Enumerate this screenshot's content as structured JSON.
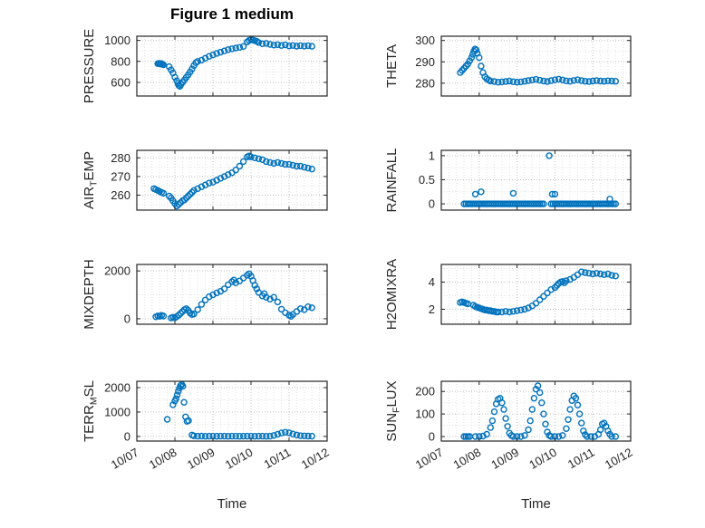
{
  "figure": {
    "title": "Figure 1 medium"
  },
  "axes": {
    "xlabel": "Time",
    "xlim": [
      0,
      5
    ],
    "x_ticks": [
      0,
      1,
      2,
      3,
      4,
      5
    ],
    "x_tick_labels": [
      "10/07",
      "10/08",
      "10/09",
      "10/10",
      "10/11",
      "10/12"
    ]
  },
  "style": {
    "marker_color": "#0072BD",
    "axis_color": "#262626",
    "tick_label_color": "#262626",
    "grid_major": "#c2c2c2",
    "grid_minor": "#e2e2e2"
  },
  "chart_data": [
    {
      "type": "scatter",
      "name": "pressure",
      "marker": "o",
      "ylabel_parts": [
        {
          "t": "PRESSURE"
        }
      ],
      "ylim": [
        470,
        1040
      ],
      "y_ticks": [
        600,
        800,
        1000
      ],
      "y_tick_labels": [
        "600",
        "800",
        "1000"
      ],
      "show_x_tick_labels": false,
      "x": [
        0.55,
        0.58,
        0.61,
        0.64,
        0.67,
        0.7,
        0.85,
        0.9,
        0.95,
        1.0,
        1.05,
        1.08,
        1.1,
        1.13,
        1.16,
        1.2,
        1.25,
        1.3,
        1.35,
        1.4,
        1.45,
        1.5,
        1.55,
        1.6,
        1.7,
        1.8,
        1.9,
        2.0,
        2.1,
        2.2,
        2.3,
        2.4,
        2.5,
        2.6,
        2.7,
        2.8,
        2.9,
        2.95,
        3.0,
        3.05,
        3.1,
        3.15,
        3.2,
        3.3,
        3.4,
        3.5,
        3.6,
        3.7,
        3.8,
        3.9,
        4.0,
        4.1,
        4.2,
        4.3,
        4.4,
        4.5,
        4.6
      ],
      "y": [
        778,
        782,
        776,
        780,
        772,
        768,
        750,
        720,
        690,
        650,
        615,
        590,
        572,
        562,
        580,
        600,
        622,
        648,
        672,
        700,
        728,
        760,
        788,
        800,
        812,
        830,
        848,
        862,
        876,
        888,
        900,
        912,
        920,
        928,
        934,
        942,
        986,
        1000,
        1008,
        1004,
        998,
        992,
        980,
        968,
        972,
        962,
        955,
        960,
        952,
        958,
        948,
        952,
        945,
        950,
        946,
        950,
        944
      ]
    },
    {
      "type": "scatter",
      "name": "theta",
      "marker": "o",
      "ylabel_parts": [
        {
          "t": "THETA"
        }
      ],
      "ylim": [
        274,
        302
      ],
      "y_ticks": [
        280,
        290,
        300
      ],
      "y_tick_labels": [
        "280",
        "290",
        "300"
      ],
      "show_x_tick_labels": false,
      "x": [
        0.5,
        0.55,
        0.6,
        0.65,
        0.7,
        0.75,
        0.8,
        0.83,
        0.86,
        0.89,
        0.92,
        0.95,
        1.0,
        1.05,
        1.1,
        1.15,
        1.2,
        1.25,
        1.3,
        1.4,
        1.5,
        1.6,
        1.7,
        1.8,
        1.9,
        2.0,
        2.1,
        2.2,
        2.3,
        2.4,
        2.5,
        2.6,
        2.7,
        2.8,
        2.9,
        3.0,
        3.1,
        3.2,
        3.3,
        3.4,
        3.5,
        3.6,
        3.7,
        3.8,
        3.9,
        4.0,
        4.1,
        4.2,
        4.3,
        4.4,
        4.5,
        4.6
      ],
      "y": [
        285,
        286,
        287,
        288,
        289,
        290.5,
        292,
        293.5,
        295,
        296,
        295.5,
        294,
        292,
        288,
        285,
        283,
        282,
        281.5,
        281,
        280.8,
        280.5,
        280.6,
        280.8,
        281,
        280.7,
        280.5,
        280.6,
        280.9,
        281.2,
        281.5,
        281.8,
        281.4,
        281,
        280.8,
        281.2,
        281.6,
        281.9,
        281.5,
        281.1,
        280.9,
        281.3,
        281.6,
        281.2,
        280.9,
        280.8,
        281,
        281.2,
        281,
        280.9,
        281.1,
        281,
        280.9
      ]
    },
    {
      "type": "scatter",
      "name": "air-temp",
      "marker": "o",
      "ylabel_parts": [
        {
          "t": "AIR"
        },
        {
          "t": "T",
          "sub": true
        },
        {
          "t": "EMP"
        }
      ],
      "ylim": [
        252,
        284
      ],
      "y_ticks": [
        260,
        270,
        280
      ],
      "y_tick_labels": [
        "260",
        "270",
        "280"
      ],
      "show_x_tick_labels": false,
      "x": [
        0.45,
        0.5,
        0.55,
        0.6,
        0.65,
        0.7,
        0.85,
        0.9,
        0.95,
        1.0,
        1.05,
        1.1,
        1.15,
        1.2,
        1.25,
        1.3,
        1.35,
        1.4,
        1.45,
        1.5,
        1.6,
        1.7,
        1.8,
        1.9,
        2.0,
        2.1,
        2.2,
        2.3,
        2.4,
        2.5,
        2.6,
        2.7,
        2.8,
        2.9,
        2.95,
        3.0,
        3.1,
        3.2,
        3.3,
        3.4,
        3.5,
        3.6,
        3.7,
        3.8,
        3.9,
        4.0,
        4.1,
        4.2,
        4.3,
        4.4,
        4.5,
        4.6
      ],
      "y": [
        263.5,
        263,
        262.5,
        262,
        261.5,
        261,
        259.5,
        258.5,
        257,
        255.5,
        254.2,
        255,
        256,
        257,
        257.5,
        258.5,
        259.5,
        260.5,
        261.5,
        262.5,
        263.5,
        264.5,
        265.5,
        266.5,
        267,
        268,
        269,
        270,
        271,
        272,
        273.5,
        275.5,
        278,
        280.5,
        281,
        280.5,
        280,
        279.5,
        279,
        278,
        277.5,
        277,
        277.5,
        277,
        276.5,
        276.5,
        276,
        275.5,
        275.5,
        275,
        274.5,
        274
      ]
    },
    {
      "type": "scatter",
      "name": "rainfall",
      "marker": "o",
      "ylabel_parts": [
        {
          "t": "RAINFALL"
        }
      ],
      "ylim": [
        -0.13,
        1.11
      ],
      "y_ticks": [
        0,
        0.5,
        1
      ],
      "y_tick_labels": [
        "0",
        "0.5",
        "1"
      ],
      "show_x_tick_labels": false,
      "x": [
        0.6,
        0.65,
        0.7,
        0.75,
        0.8,
        0.85,
        0.9,
        0.95,
        1,
        1.05,
        1.1,
        1.15,
        1.2,
        1.25,
        1.3,
        1.35,
        1.4,
        1.45,
        1.5,
        1.55,
        1.6,
        1.65,
        1.7,
        1.75,
        1.8,
        1.85,
        1.9,
        1.95,
        2,
        2.05,
        2.1,
        2.15,
        2.2,
        2.25,
        2.3,
        2.35,
        2.4,
        2.45,
        2.5,
        2.55,
        2.6,
        2.65,
        2.7,
        2.9,
        2.95,
        3,
        3.05,
        3.1,
        3.15,
        3.2,
        3.25,
        3.3,
        3.35,
        3.4,
        3.45,
        3.5,
        3.55,
        3.6,
        3.65,
        3.7,
        3.75,
        3.8,
        3.85,
        3.9,
        3.95,
        4,
        4.05,
        4.1,
        4.15,
        4.2,
        4.25,
        4.3,
        4.35,
        4.4,
        4.45,
        4.5,
        4.55,
        4.6,
        0.9,
        1.05,
        1.9,
        2.85,
        2.93,
        3,
        4.45
      ],
      "y": [
        0,
        0,
        0,
        0,
        0,
        0,
        0,
        0,
        0,
        0,
        0,
        0,
        0,
        0,
        0,
        0,
        0,
        0,
        0,
        0,
        0,
        0,
        0,
        0,
        0,
        0,
        0,
        0,
        0,
        0,
        0,
        0,
        0,
        0,
        0,
        0,
        0,
        0,
        0,
        0,
        0,
        0,
        0,
        0,
        0,
        0,
        0,
        0,
        0,
        0,
        0,
        0,
        0,
        0,
        0,
        0,
        0,
        0,
        0,
        0,
        0,
        0,
        0,
        0,
        0,
        0,
        0,
        0,
        0,
        0,
        0,
        0,
        0,
        0,
        0,
        0,
        0,
        0,
        0.2,
        0.25,
        0.22,
        1,
        0.2,
        0.2,
        0.1
      ]
    },
    {
      "type": "scatter",
      "name": "mixdepth",
      "marker": "o",
      "ylabel_parts": [
        {
          "t": "MIXDEPTH"
        }
      ],
      "ylim": [
        -230,
        2270
      ],
      "y_ticks": [
        0,
        2000
      ],
      "y_tick_labels": [
        "0",
        "2000"
      ],
      "show_x_tick_labels": false,
      "x": [
        0.5,
        0.55,
        0.6,
        0.65,
        0.7,
        0.9,
        0.95,
        1.0,
        1.05,
        1.1,
        1.15,
        1.2,
        1.25,
        1.3,
        1.35,
        1.4,
        1.45,
        1.5,
        1.6,
        1.7,
        1.8,
        1.9,
        2.0,
        2.1,
        2.2,
        2.3,
        2.4,
        2.5,
        2.55,
        2.6,
        2.7,
        2.8,
        2.9,
        2.95,
        3.0,
        3.05,
        3.1,
        3.15,
        3.2,
        3.3,
        3.35,
        3.4,
        3.5,
        3.6,
        3.7,
        3.8,
        3.9,
        4.0,
        4.05,
        4.1,
        4.2,
        4.3,
        4.4,
        4.5,
        4.6
      ],
      "y": [
        80,
        120,
        100,
        140,
        110,
        30,
        60,
        40,
        90,
        150,
        220,
        300,
        380,
        420,
        350,
        240,
        180,
        200,
        380,
        600,
        780,
        920,
        1000,
        1080,
        1150,
        1250,
        1420,
        1550,
        1620,
        1500,
        1580,
        1700,
        1820,
        1880,
        1780,
        1600,
        1400,
        1250,
        1100,
        950,
        1050,
        900,
        820,
        900,
        700,
        400,
        250,
        150,
        100,
        180,
        300,
        420,
        380,
        500,
        460
      ]
    },
    {
      "type": "scatter",
      "name": "h2omixra",
      "marker": "o",
      "ylabel_parts": [
        {
          "t": "H2OMIXRA"
        }
      ],
      "ylim": [
        0.9,
        5.3
      ],
      "y_ticks": [
        2,
        4
      ],
      "y_tick_labels": [
        "2",
        "4"
      ],
      "show_x_tick_labels": false,
      "x": [
        0.5,
        0.55,
        0.6,
        0.65,
        0.7,
        0.85,
        0.9,
        0.95,
        1.0,
        1.05,
        1.1,
        1.15,
        1.2,
        1.25,
        1.3,
        1.35,
        1.4,
        1.45,
        1.5,
        1.6,
        1.7,
        1.8,
        1.9,
        2.0,
        2.1,
        2.2,
        2.3,
        2.4,
        2.5,
        2.6,
        2.7,
        2.8,
        2.9,
        3.0,
        3.05,
        3.1,
        3.15,
        3.2,
        3.25,
        3.3,
        3.4,
        3.5,
        3.6,
        3.7,
        3.8,
        3.9,
        4.0,
        4.1,
        4.2,
        4.3,
        4.4,
        4.5,
        4.6
      ],
      "y": [
        2.5,
        2.55,
        2.5,
        2.45,
        2.4,
        2.3,
        2.2,
        2.15,
        2.1,
        2.05,
        2.0,
        1.95,
        1.95,
        1.9,
        1.9,
        1.85,
        1.85,
        1.8,
        1.8,
        1.8,
        1.85,
        1.8,
        1.85,
        1.9,
        1.95,
        2.0,
        2.1,
        2.25,
        2.45,
        2.7,
        2.95,
        3.2,
        3.45,
        3.6,
        3.75,
        3.9,
        4.0,
        4.05,
        3.95,
        4.1,
        4.2,
        4.35,
        4.55,
        4.75,
        4.7,
        4.65,
        4.6,
        4.65,
        4.6,
        4.55,
        4.6,
        4.5,
        4.45
      ]
    },
    {
      "type": "scatter",
      "name": "terr-msl",
      "marker": "o",
      "ylabel_parts": [
        {
          "t": "TERR"
        },
        {
          "t": "M",
          "sub": true
        },
        {
          "t": "SL"
        }
      ],
      "ylim": [
        -190,
        2260
      ],
      "y_ticks": [
        0,
        1000,
        2000
      ],
      "y_tick_labels": [
        "0",
        "1000",
        "2000"
      ],
      "show_x_tick_labels": true,
      "x": [
        0.8,
        0.95,
        1.0,
        1.03,
        1.06,
        1.09,
        1.12,
        1.15,
        1.18,
        1.21,
        1.24,
        1.28,
        1.32,
        1.36,
        1.45,
        1.5,
        1.6,
        1.7,
        1.8,
        1.9,
        2.0,
        2.1,
        2.2,
        2.3,
        2.4,
        2.5,
        2.6,
        2.7,
        2.8,
        2.9,
        3.0,
        3.1,
        3.2,
        3.3,
        3.4,
        3.5,
        3.6,
        3.7,
        3.8,
        3.9,
        4.0,
        4.1,
        4.2,
        4.3,
        4.4,
        4.5,
        4.6
      ],
      "y": [
        700,
        1300,
        1450,
        1550,
        1700,
        1850,
        1980,
        2080,
        2130,
        2060,
        1400,
        800,
        620,
        650,
        60,
        20,
        10,
        15,
        8,
        12,
        10,
        8,
        12,
        10,
        8,
        10,
        12,
        8,
        10,
        12,
        10,
        8,
        10,
        12,
        8,
        10,
        40,
        90,
        140,
        170,
        150,
        100,
        60,
        30,
        20,
        15,
        12
      ]
    },
    {
      "type": "scatter",
      "name": "sun-flux",
      "marker": "o",
      "ylabel_parts": [
        {
          "t": "SUN"
        },
        {
          "t": "F",
          "sub": true
        },
        {
          "t": "LUX"
        }
      ],
      "ylim": [
        -20,
        245
      ],
      "y_ticks": [
        0,
        100,
        200
      ],
      "y_tick_labels": [
        "0",
        "100",
        "200"
      ],
      "show_x_tick_labels": true,
      "x": [
        0.6,
        0.65,
        0.7,
        0.75,
        0.9,
        1.0,
        1.1,
        1.2,
        1.3,
        1.35,
        1.4,
        1.45,
        1.5,
        1.55,
        1.6,
        1.65,
        1.7,
        1.75,
        1.8,
        1.85,
        1.9,
        2.0,
        2.1,
        2.2,
        2.3,
        2.35,
        2.4,
        2.45,
        2.5,
        2.55,
        2.6,
        2.65,
        2.7,
        2.75,
        2.8,
        2.85,
        2.9,
        3.0,
        3.1,
        3.2,
        3.3,
        3.35,
        3.4,
        3.45,
        3.5,
        3.55,
        3.6,
        3.65,
        3.7,
        3.75,
        3.8,
        3.85,
        3.95,
        4.05,
        4.15,
        4.2,
        4.25,
        4.3,
        4.35,
        4.4,
        4.45,
        4.5,
        4.6
      ],
      "y": [
        0,
        0,
        0,
        0,
        0,
        0,
        2,
        10,
        40,
        70,
        110,
        145,
        165,
        170,
        150,
        120,
        80,
        45,
        15,
        5,
        0,
        0,
        0,
        5,
        30,
        70,
        120,
        170,
        210,
        225,
        195,
        150,
        100,
        55,
        20,
        5,
        0,
        0,
        0,
        5,
        35,
        75,
        120,
        160,
        180,
        170,
        140,
        100,
        60,
        25,
        8,
        0,
        0,
        0,
        10,
        30,
        55,
        60,
        45,
        25,
        10,
        0,
        0
      ]
    }
  ]
}
